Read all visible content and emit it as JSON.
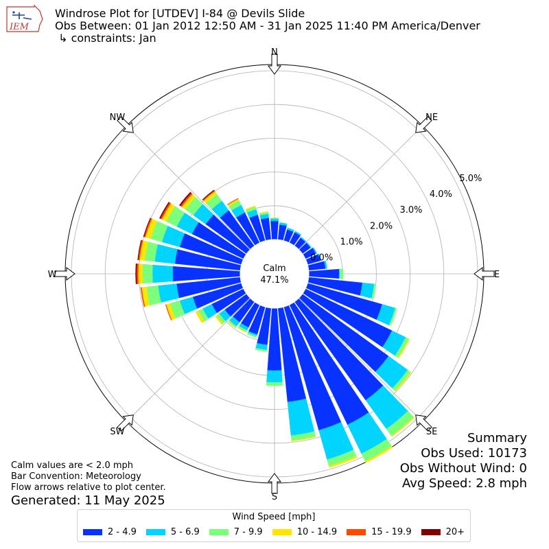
{
  "header": {
    "logo_text": "IEM",
    "title_line1": "Windrose Plot for [UTDEV] I-84 @ Devils Slide",
    "title_line2": "Obs Between: 01 Jan 2012 12:50 AM - 31 Jan 2025 11:40 PM America/Denver",
    "title_line3": " ↳ constraints: Jan"
  },
  "summary": {
    "heading": "Summary",
    "obs_used": "Obs Used: 10173",
    "obs_without_wind": "Obs Without Wind: 0",
    "avg_speed": "Avg Speed: 2.8 mph"
  },
  "notes": {
    "calm_note": "Calm values are < 2.0 mph",
    "bar_convention": "Bar Convention: Meteorology",
    "flow_arrows": "Flow arrows relative to plot center.",
    "generated": "Generated: 11 May 2025"
  },
  "legend": {
    "title": "Wind Speed [mph]",
    "items": [
      {
        "label": "2 - 4.9",
        "color": "#0832ff"
      },
      {
        "label": "5 - 6.9",
        "color": "#00d4ff"
      },
      {
        "label": "7 - 9.9",
        "color": "#7cff7a"
      },
      {
        "label": "10 - 14.9",
        "color": "#ffe600"
      },
      {
        "label": "15 - 19.9",
        "color": "#ff4a00"
      },
      {
        "label": "20+",
        "color": "#800000"
      }
    ]
  },
  "chart_data": {
    "type": "windrose",
    "calm_label": "Calm",
    "calm_value": "47.1%",
    "radial_ticks": [
      "0.0%",
      "1.0%",
      "2.0%",
      "3.0%",
      "4.0%",
      "5.0%"
    ],
    "rlim": [
      0,
      5.2
    ],
    "compass_labels": [
      "N",
      "NE",
      "E",
      "SE",
      "S",
      "SW",
      "W",
      "NW"
    ],
    "directions_deg": [
      0,
      10,
      20,
      30,
      40,
      50,
      60,
      70,
      80,
      90,
      100,
      110,
      120,
      130,
      140,
      150,
      160,
      170,
      180,
      190,
      200,
      210,
      220,
      230,
      240,
      250,
      260,
      270,
      280,
      290,
      300,
      310,
      320,
      330,
      340,
      350
    ],
    "series": [
      {
        "name": "2 - 4.9",
        "values": [
          0.55,
          0.45,
          0.35,
          0.35,
          0.3,
          0.3,
          0.35,
          0.4,
          0.5,
          0.9,
          1.6,
          2.3,
          2.85,
          3.15,
          3.6,
          3.95,
          3.8,
          2.8,
          1.85,
          1.1,
          0.85,
          0.75,
          0.75,
          0.8,
          1.05,
          1.5,
          1.9,
          2.0,
          1.95,
          1.9,
          1.7,
          1.5,
          1.3,
          1.0,
          0.8,
          0.65
        ]
      },
      {
        "name": "5 - 6.9",
        "values": [
          0.07,
          0.06,
          0.05,
          0.04,
          0.03,
          0.03,
          0.03,
          0.03,
          0.05,
          0.02,
          0.35,
          0.4,
          0.45,
          0.7,
          1.05,
          0.95,
          0.9,
          1.0,
          0.35,
          0.15,
          0.05,
          0.1,
          0.15,
          0.2,
          0.3,
          0.4,
          0.55,
          0.6,
          0.6,
          0.55,
          0.5,
          0.45,
          0.35,
          0.25,
          0.17,
          0.12
        ]
      },
      {
        "name": "7 - 9.9",
        "values": [
          0.02,
          0.01,
          0.01,
          0.0,
          0.0,
          0.0,
          0.0,
          0.0,
          0.0,
          0.1,
          0.05,
          0.05,
          0.1,
          0.1,
          0.25,
          0.25,
          0.2,
          0.15,
          0.1,
          0.05,
          0.05,
          0.05,
          0.05,
          0.1,
          0.15,
          0.3,
          0.35,
          0.3,
          0.3,
          0.35,
          0.35,
          0.3,
          0.25,
          0.15,
          0.08,
          0.05
        ]
      },
      {
        "name": "10 - 14.9",
        "values": [
          0.01,
          0.0,
          0.0,
          0.0,
          0.0,
          0.0,
          0.0,
          0.0,
          0.0,
          0.0,
          0.0,
          0.0,
          0.03,
          0.03,
          0.03,
          0.05,
          0.05,
          0.02,
          0.0,
          0.0,
          0.0,
          0.02,
          0.02,
          0.05,
          0.08,
          0.12,
          0.14,
          0.12,
          0.15,
          0.16,
          0.14,
          0.12,
          0.1,
          0.05,
          0.03,
          0.02
        ]
      },
      {
        "name": "15 - 19.9",
        "values": [
          0.0,
          0.0,
          0.0,
          0.0,
          0.0,
          0.0,
          0.0,
          0.0,
          0.0,
          0.0,
          0.0,
          0.0,
          0.0,
          0.0,
          0.0,
          0.0,
          0.0,
          0.0,
          0.0,
          0.0,
          0.0,
          0.0,
          0.0,
          0.0,
          0.0,
          0.02,
          0.03,
          0.05,
          0.04,
          0.04,
          0.05,
          0.05,
          0.03,
          0.02,
          0.0,
          0.0
        ]
      },
      {
        "name": "20+",
        "values": [
          0.0,
          0.0,
          0.0,
          0.0,
          0.0,
          0.0,
          0.0,
          0.0,
          0.0,
          0.0,
          0.0,
          0.0,
          0.0,
          0.0,
          0.0,
          0.0,
          0.0,
          0.0,
          0.0,
          0.0,
          0.0,
          0.0,
          0.0,
          0.0,
          0.0,
          0.0,
          0.0,
          0.03,
          0.02,
          0.02,
          0.03,
          0.04,
          0.02,
          0.0,
          0.0,
          0.0
        ]
      }
    ]
  }
}
